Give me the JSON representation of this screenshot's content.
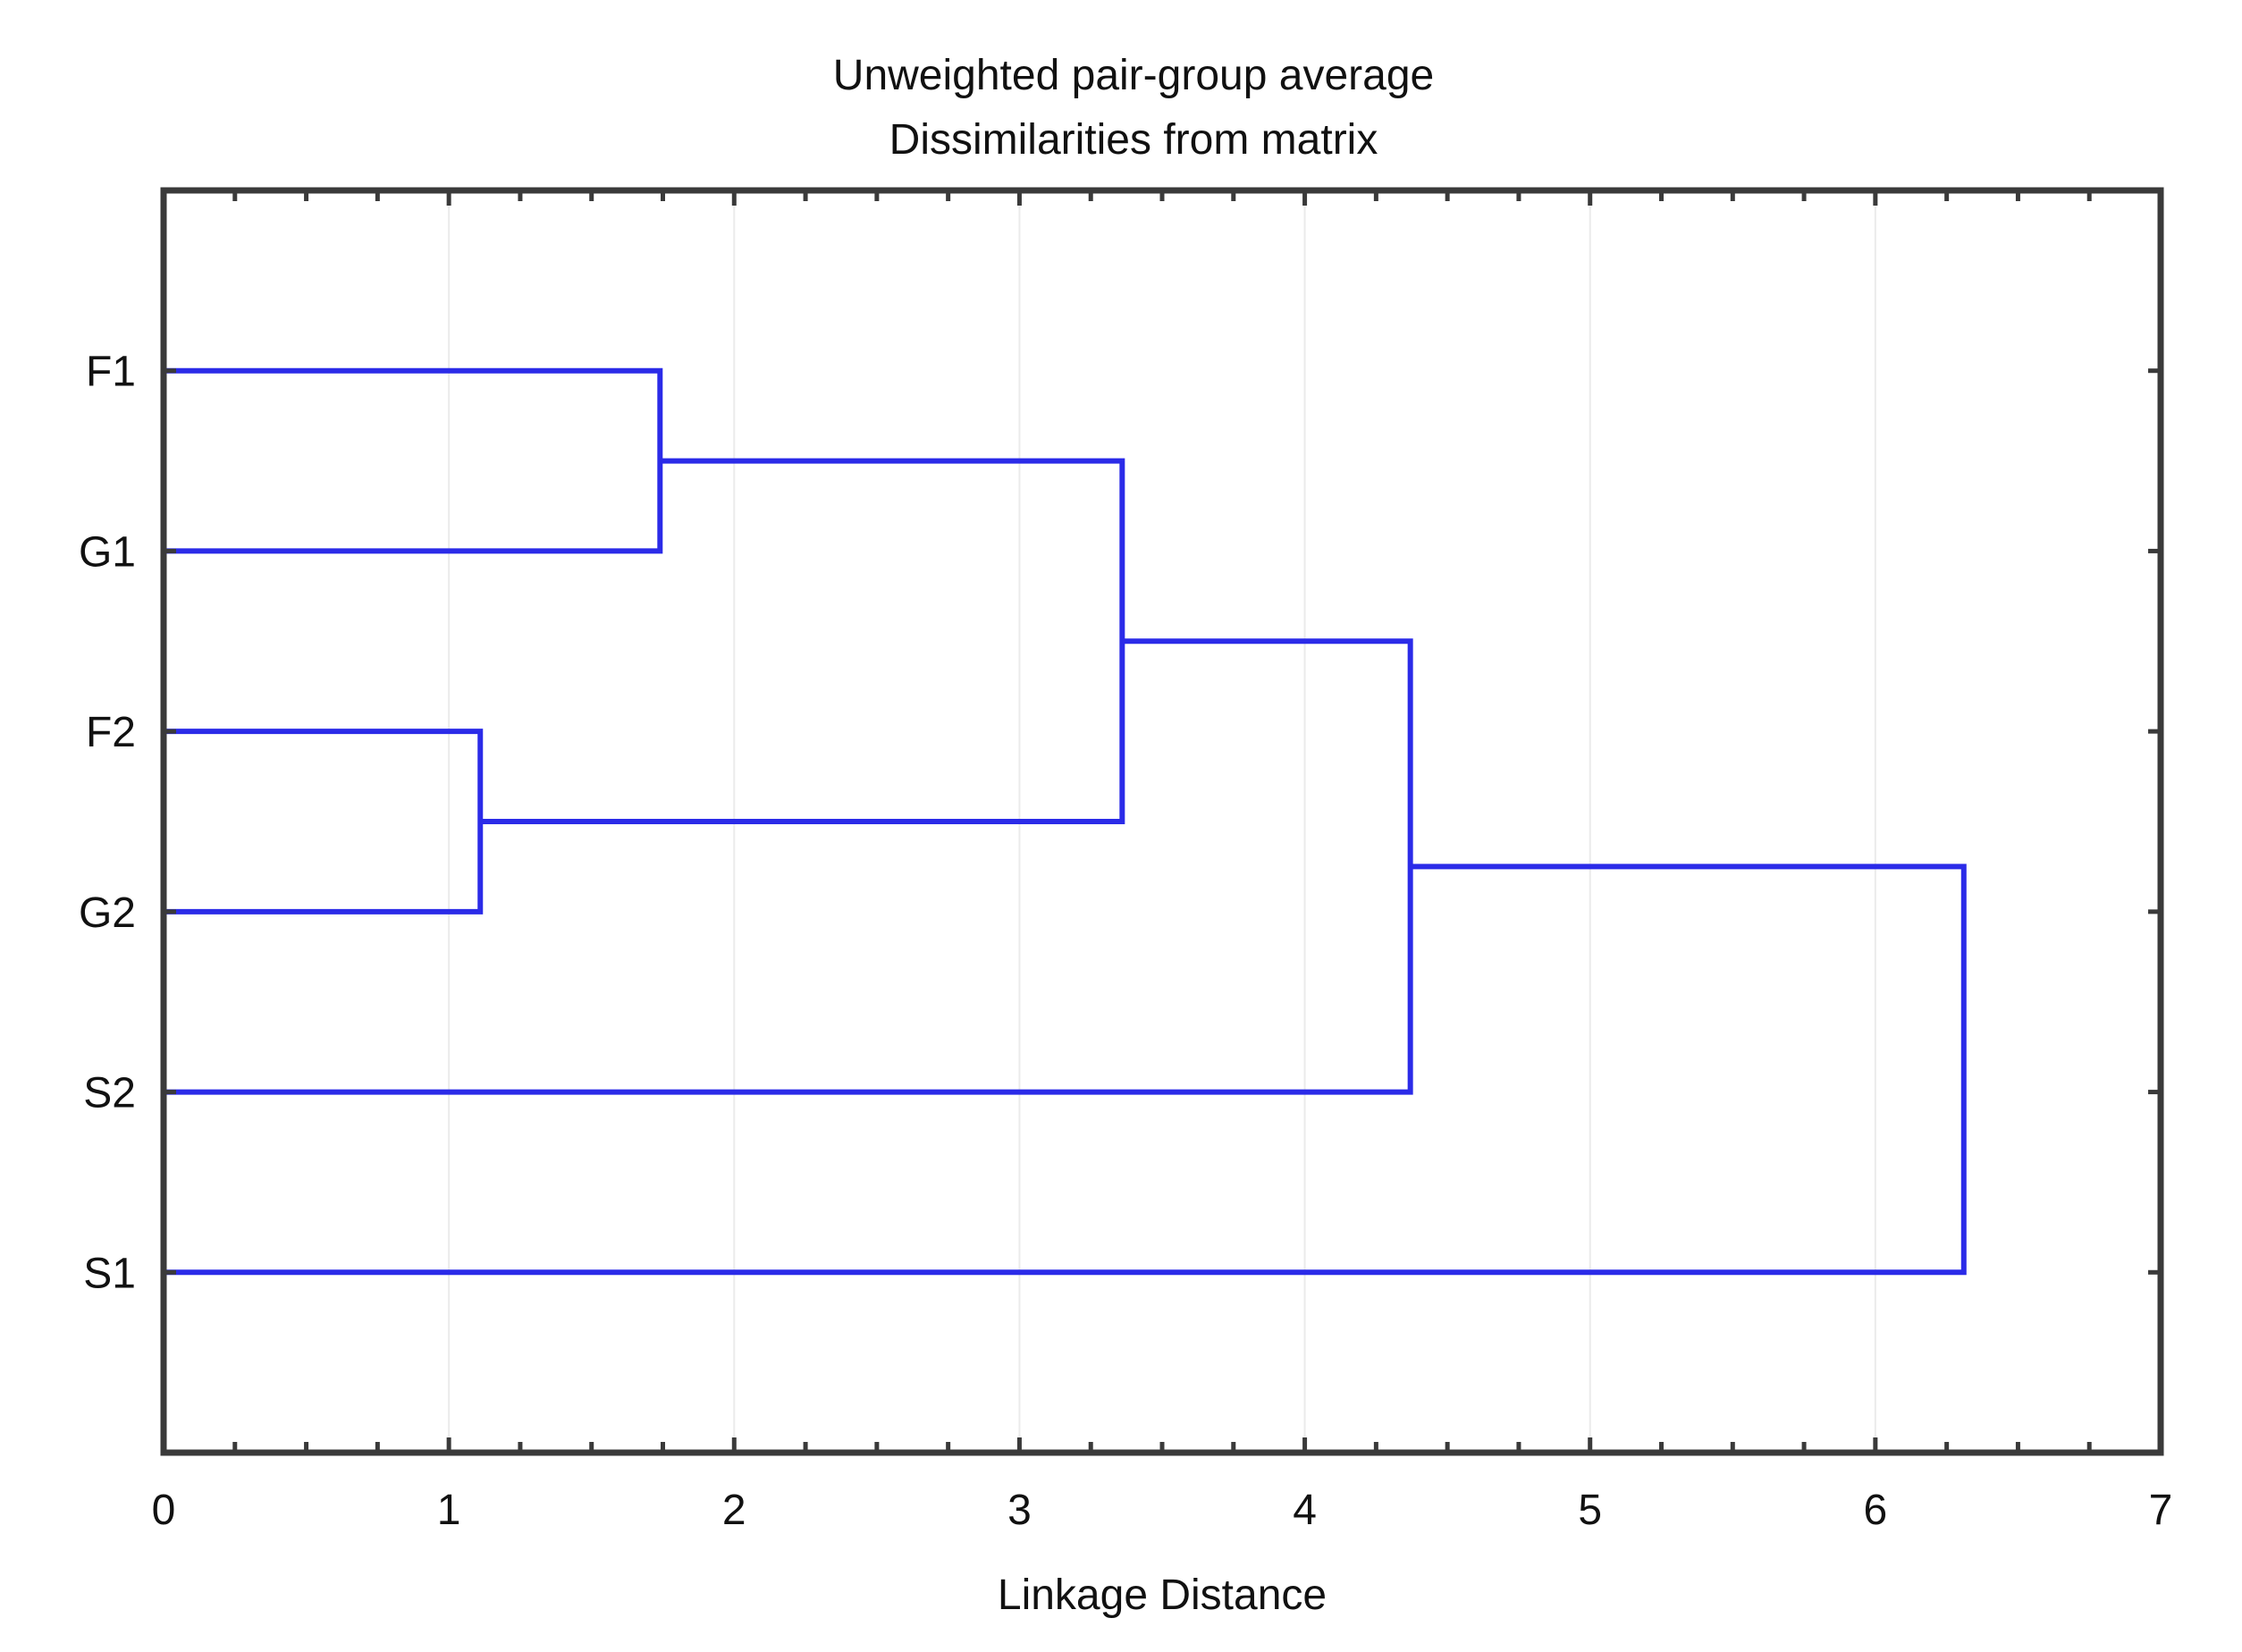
{
  "figure": {
    "title_line1": "Unweighted pair-group average",
    "title_line2": "Dissimilarities from matrix",
    "xlabel": "Linkage Distance"
  },
  "chart_data": {
    "type": "dendrogram",
    "orientation": "horizontal",
    "title": "Unweighted pair-group average",
    "subtitle": "Dissimilarities from matrix",
    "xlabel": "Linkage Distance",
    "xlim": [
      0,
      7
    ],
    "leaves": [
      "F1",
      "G1",
      "F2",
      "G2",
      "S2",
      "S1"
    ],
    "merges": [
      {
        "id": "M1",
        "children": [
          "F1",
          "G1"
        ],
        "distance": 1.74
      },
      {
        "id": "M2",
        "children": [
          "F2",
          "G2"
        ],
        "distance": 1.11
      },
      {
        "id": "M3",
        "children": [
          "M1",
          "M2"
        ],
        "distance": 3.36
      },
      {
        "id": "M4",
        "children": [
          "M3",
          "S2"
        ],
        "distance": 4.37
      },
      {
        "id": "M5",
        "children": [
          "M4",
          "S1"
        ],
        "distance": 6.31
      }
    ],
    "x_axis": {
      "ticks": [
        0,
        1,
        2,
        3,
        4,
        5,
        6,
        7
      ],
      "minor_tick_step": 0.25
    },
    "grid": {
      "vertical_at": [
        1,
        2,
        3,
        4,
        5,
        6
      ]
    },
    "colors": {
      "link": "#2b2be8",
      "axis": "#3a3a3a",
      "grid": "#ebebeb",
      "text": "#111111",
      "background": "#ffffff"
    }
  }
}
